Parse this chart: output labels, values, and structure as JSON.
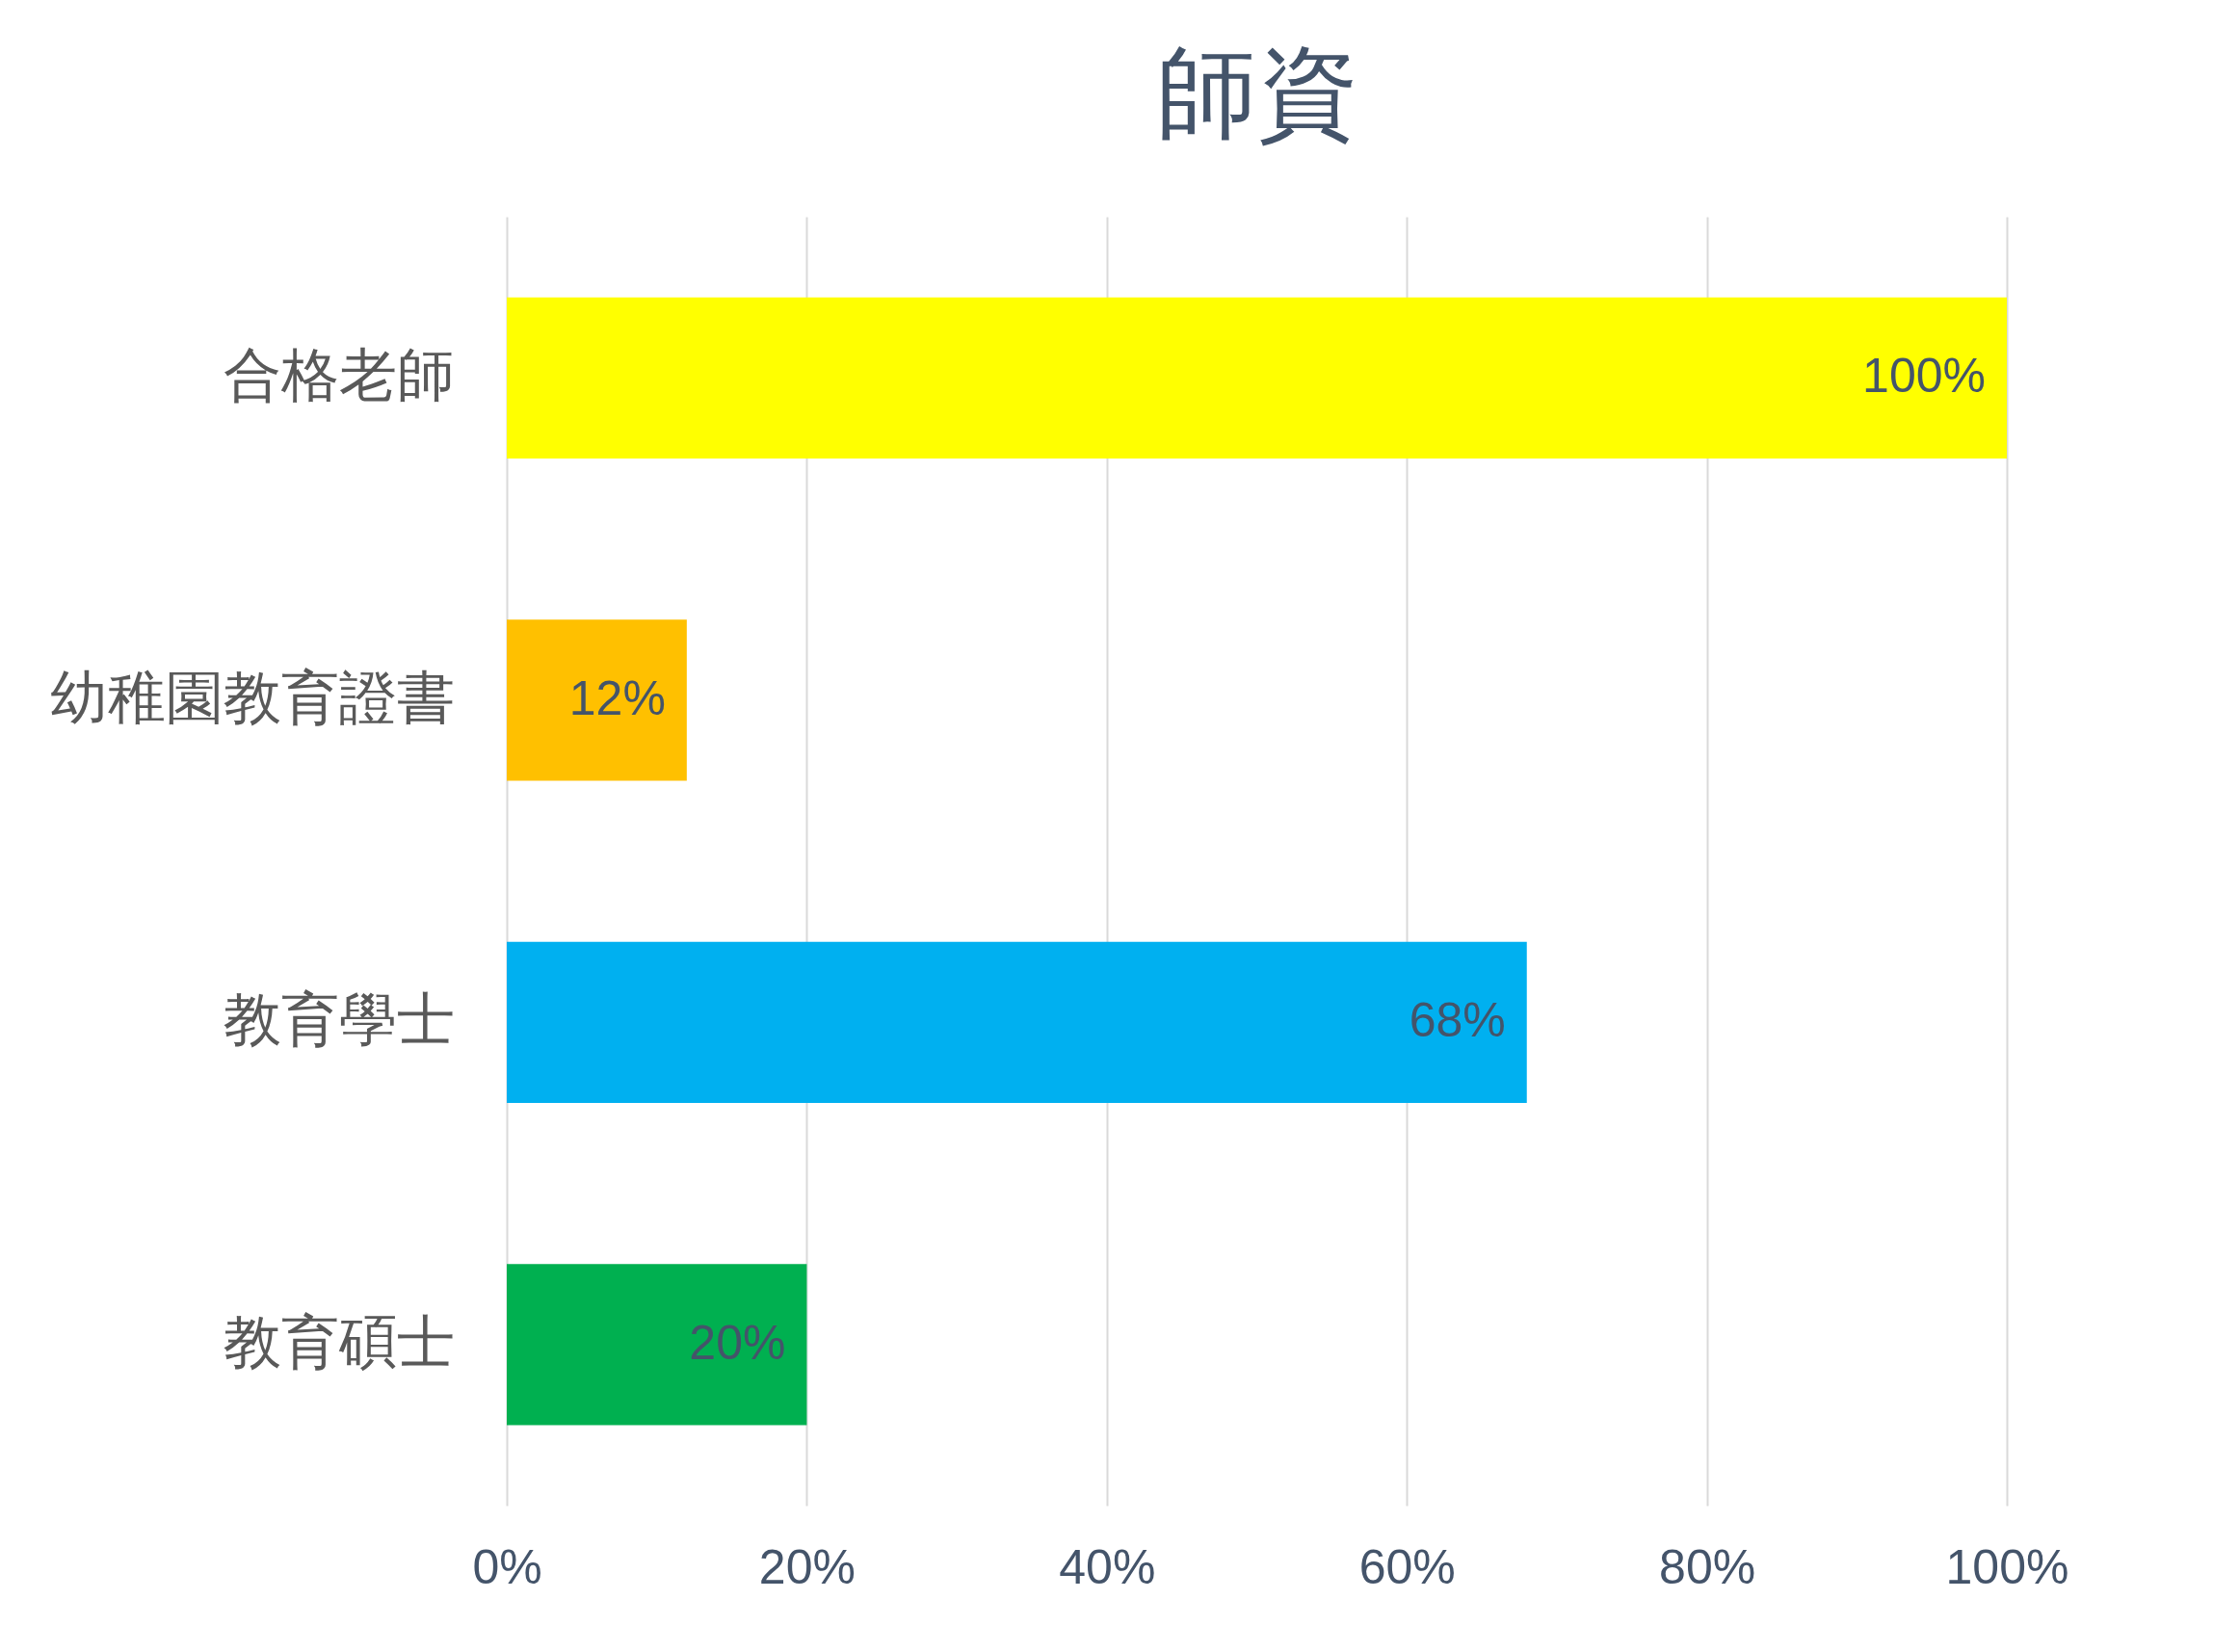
{
  "chart_data": {
    "type": "bar",
    "title": "師資",
    "orientation": "horizontal",
    "categories": [
      "合格老師",
      "幼稚園教育證書",
      "教育學士",
      "教育碩士"
    ],
    "values": [
      100,
      12,
      68,
      20
    ],
    "colors": [
      "#ffff00",
      "#ffc000",
      "#00b0f0",
      "#00b050"
    ],
    "value_labels": [
      "100%",
      "12%",
      "68%",
      "20%"
    ],
    "xlim": [
      0,
      100
    ],
    "xticks": [
      {
        "value": 0,
        "label": "0%"
      },
      {
        "value": 20,
        "label": "20%"
      },
      {
        "value": 40,
        "label": "40%"
      },
      {
        "value": 60,
        "label": "60%"
      },
      {
        "value": 80,
        "label": "80%"
      },
      {
        "value": 100,
        "label": "100%"
      }
    ],
    "grid": "x"
  }
}
